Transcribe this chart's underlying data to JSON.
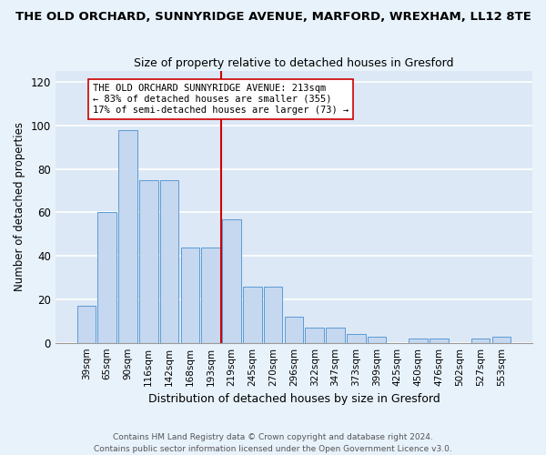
{
  "title": "THE OLD ORCHARD, SUNNYRIDGE AVENUE, MARFORD, WREXHAM, LL12 8TE",
  "subtitle": "Size of property relative to detached houses in Gresford",
  "xlabel": "Distribution of detached houses by size in Gresford",
  "ylabel": "Number of detached properties",
  "categories": [
    "39sqm",
    "65sqm",
    "90sqm",
    "116sqm",
    "142sqm",
    "168sqm",
    "193sqm",
    "219sqm",
    "245sqm",
    "270sqm",
    "296sqm",
    "322sqm",
    "347sqm",
    "373sqm",
    "399sqm",
    "425sqm",
    "450sqm",
    "476sqm",
    "502sqm",
    "527sqm",
    "553sqm"
  ],
  "values": [
    17,
    60,
    98,
    75,
    75,
    44,
    44,
    57,
    26,
    26,
    12,
    7,
    7,
    4,
    3,
    0,
    2,
    2,
    0,
    2,
    3
  ],
  "bar_color": "#c5d8f0",
  "bar_edge_color": "#5b9bd5",
  "red_line_color": "#cc0000",
  "annotation_box_edge": "#cc0000",
  "marker_label_line1": "THE OLD ORCHARD SUNNYRIDGE AVENUE: 213sqm",
  "marker_label_line2": "← 83% of detached houses are smaller (355)",
  "marker_label_line3": "17% of semi-detached houses are larger (73) →",
  "ylim": [
    0,
    125
  ],
  "yticks": [
    0,
    20,
    40,
    60,
    80,
    100,
    120
  ],
  "background_color": "#dce8f5",
  "fig_background_color": "#e8f2fb",
  "grid_color": "#ffffff",
  "footer_line1": "Contains HM Land Registry data © Crown copyright and database right 2024.",
  "footer_line2": "Contains public sector information licensed under the Open Government Licence v3.0."
}
